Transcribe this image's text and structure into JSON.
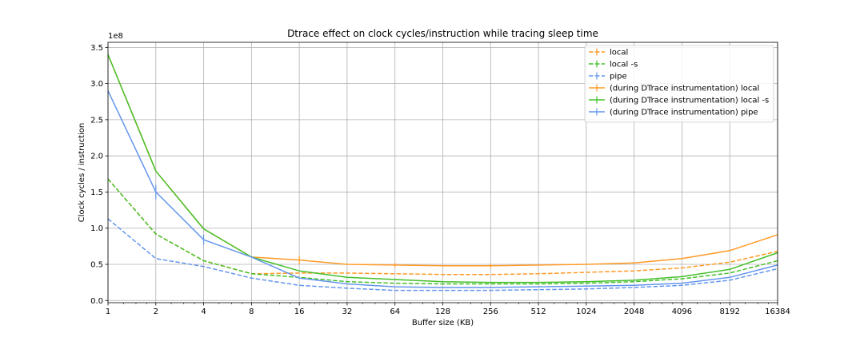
{
  "chart_data": {
    "type": "line",
    "title": "Dtrace effect on clock cycles/instruction while tracing sleep time",
    "xlabel": "Buffer size (KB)",
    "ylabel": "Clock cycles / instruction",
    "y_offset_label": "1e8",
    "x_scale": "log2",
    "x": [
      1,
      2,
      4,
      8,
      16,
      32,
      64,
      128,
      256,
      512,
      1024,
      2048,
      4096,
      8192,
      16384
    ],
    "x_tick_labels": [
      "1",
      "2",
      "4",
      "8",
      "16",
      "32",
      "64",
      "128",
      "256",
      "512",
      "1024",
      "2048",
      "4096",
      "8192",
      "16384"
    ],
    "y_ticks": [
      0.0,
      0.5,
      1.0,
      1.5,
      2.0,
      2.5,
      3.0,
      3.5
    ],
    "y_tick_labels": [
      "0.0",
      "0.5",
      "1.0",
      "1.5",
      "2.0",
      "2.5",
      "3.0",
      "3.5"
    ],
    "xlim": [
      1,
      16384
    ],
    "ylim": [
      -0.03,
      3.57
    ],
    "grid": true,
    "legend_position": "top-right",
    "series": [
      {
        "name": "local",
        "color": "#ff9a26",
        "style": "dashed",
        "values": [
          1.68,
          0.92,
          0.55,
          0.37,
          0.38,
          0.38,
          0.37,
          0.36,
          0.36,
          0.37,
          0.39,
          0.41,
          0.45,
          0.53,
          0.68
        ],
        "errors": [
          0,
          0,
          0,
          0,
          0,
          0,
          0,
          0,
          0,
          0,
          0,
          0,
          0,
          0,
          0
        ]
      },
      {
        "name": "local -s",
        "color": "#44c02a",
        "style": "dashed",
        "values": [
          1.68,
          0.92,
          0.55,
          0.37,
          0.32,
          0.26,
          0.24,
          0.23,
          0.23,
          0.23,
          0.24,
          0.26,
          0.3,
          0.38,
          0.55
        ],
        "errors": [
          0,
          0,
          0,
          0,
          0,
          0,
          0,
          0,
          0,
          0,
          0,
          0,
          0,
          0,
          0
        ]
      },
      {
        "name": "pipe",
        "color": "#6495ed",
        "style": "dashed",
        "values": [
          1.13,
          0.58,
          0.47,
          0.31,
          0.21,
          0.17,
          0.14,
          0.14,
          0.14,
          0.15,
          0.16,
          0.18,
          0.21,
          0.28,
          0.44
        ],
        "errors": [
          0,
          0,
          0,
          0,
          0,
          0,
          0,
          0,
          0,
          0,
          0,
          0,
          0,
          0,
          0
        ]
      },
      {
        "name": "(during DTrace instrumentation) local",
        "color": "#ff9a26",
        "style": "solid",
        "values": [
          3.4,
          1.79,
          0.99,
          0.6,
          0.56,
          0.5,
          0.49,
          0.48,
          0.48,
          0.49,
          0.5,
          0.52,
          0.58,
          0.69,
          0.91
        ],
        "errors": [
          0,
          0,
          0,
          0,
          0.06,
          0,
          0.03,
          0,
          0.03,
          0,
          0,
          0,
          0,
          0,
          0
        ]
      },
      {
        "name": "(during DTrace instrumentation) local -s",
        "color": "#44c02a",
        "style": "solid",
        "values": [
          3.4,
          1.79,
          0.99,
          0.6,
          0.41,
          0.32,
          0.29,
          0.26,
          0.25,
          0.25,
          0.26,
          0.28,
          0.33,
          0.43,
          0.66
        ],
        "errors": [
          0,
          0,
          0,
          0,
          0,
          0,
          0,
          0,
          0,
          0,
          0,
          0,
          0,
          0,
          0
        ]
      },
      {
        "name": "(during DTrace instrumentation) pipe",
        "color": "#6495ed",
        "style": "solid",
        "values": [
          2.9,
          1.5,
          0.84,
          0.6,
          0.31,
          0.23,
          0.19,
          0.18,
          0.18,
          0.19,
          0.2,
          0.21,
          0.24,
          0.32,
          0.49
        ],
        "errors": [
          0,
          0.1,
          0.07,
          0,
          0,
          0,
          0,
          0,
          0,
          0,
          0,
          0,
          0,
          0,
          0
        ]
      }
    ]
  }
}
